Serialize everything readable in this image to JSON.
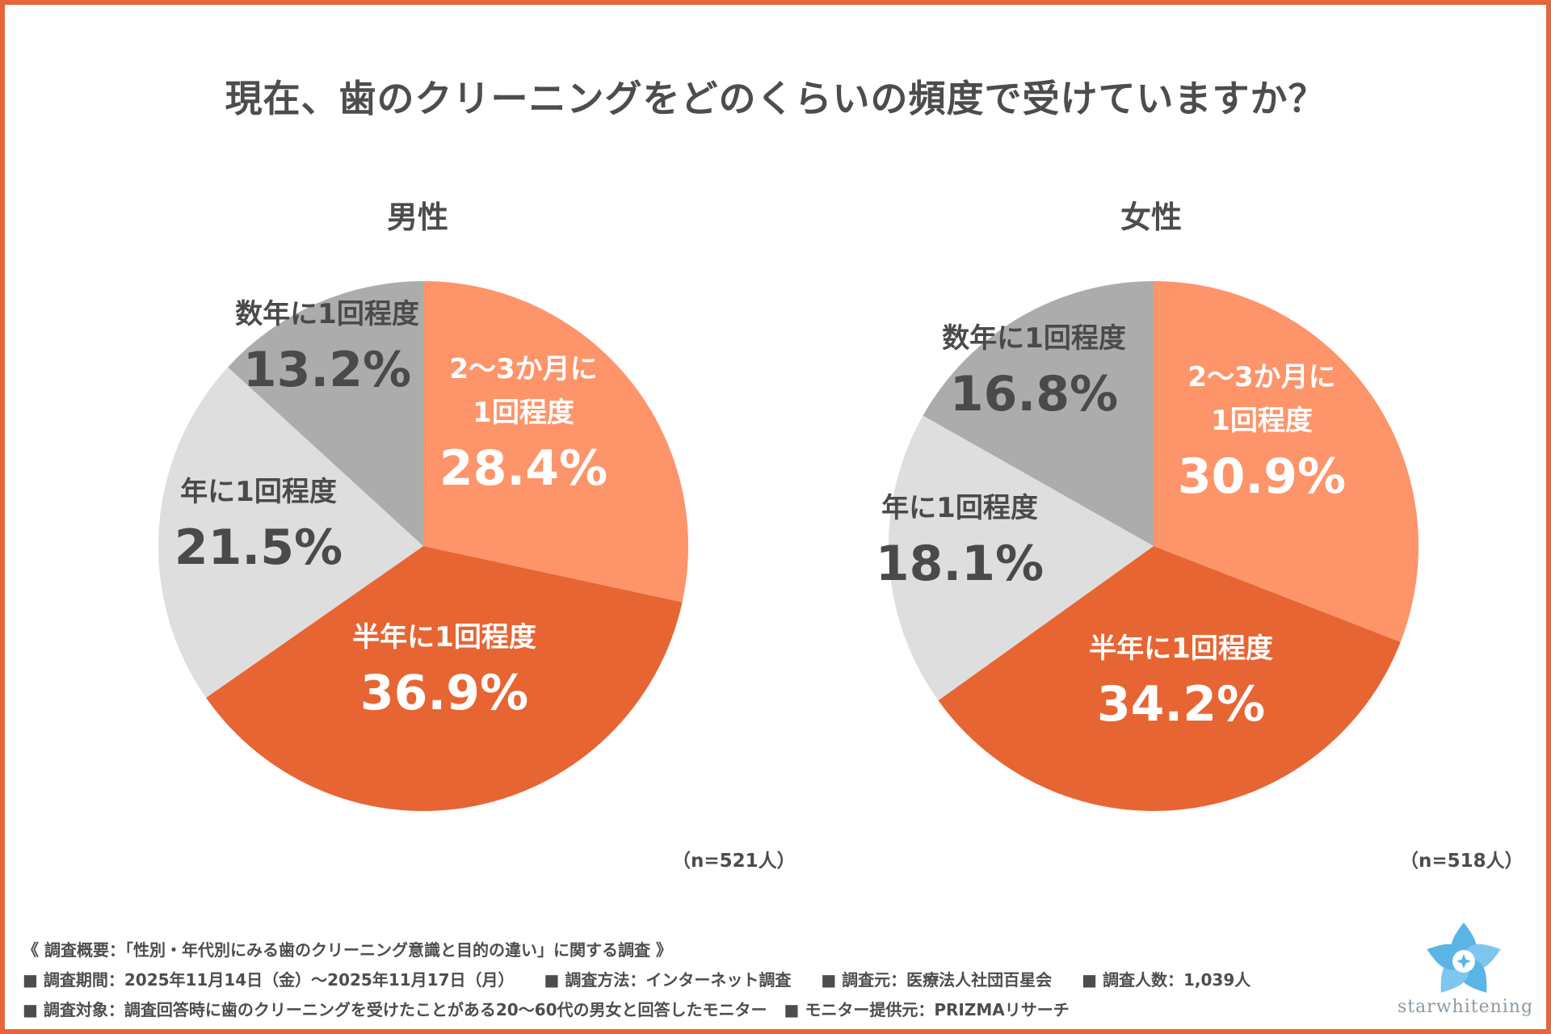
{
  "title": "現在、歯のクリーニングをどのくらいの頻度で受けていますか？",
  "colors": {
    "border": "#e8643a",
    "slice_1": "#fe946a",
    "slice_2": "#e76533",
    "slice_3": "#dedede",
    "slice_4": "#acacac",
    "text_light": "#ffffff",
    "text_dark": "#4a4a4a"
  },
  "chart_data": [
    {
      "type": "pie",
      "title": "男性",
      "n_label": "（n=521人）",
      "slices": [
        {
          "label": "2〜3か月に1回程度",
          "label_lines": [
            "2〜3か月に",
            "1回程度"
          ],
          "value": 28.4,
          "value_label": "28.4%"
        },
        {
          "label": "半年に1回程度",
          "label_lines": [
            "半年に1回程度"
          ],
          "value": 36.9,
          "value_label": "36.9%"
        },
        {
          "label": "年に1回程度",
          "label_lines": [
            "年に1回程度"
          ],
          "value": 21.5,
          "value_label": "21.5%"
        },
        {
          "label": "数年に1回程度",
          "label_lines": [
            "数年に1回程度"
          ],
          "value": 13.2,
          "value_label": "13.2%"
        }
      ]
    },
    {
      "type": "pie",
      "title": "女性",
      "n_label": "（n=518人）",
      "slices": [
        {
          "label": "2〜3か月に1回程度",
          "label_lines": [
            "2〜3か月に",
            "1回程度"
          ],
          "value": 30.9,
          "value_label": "30.9%"
        },
        {
          "label": "半年に1回程度",
          "label_lines": [
            "半年に1回程度"
          ],
          "value": 34.2,
          "value_label": "34.2%"
        },
        {
          "label": "年に1回程度",
          "label_lines": [
            "年に1回程度"
          ],
          "value": 18.1,
          "value_label": "18.1%"
        },
        {
          "label": "数年に1回程度",
          "label_lines": [
            "数年に1回程度"
          ],
          "value": 16.8,
          "value_label": "16.8%"
        }
      ]
    }
  ],
  "footer": {
    "line1": "《 調査概要：「性別・年代別にみる歯のクリーニング意識と目的の違い」に関する調査 》",
    "line2": [
      "■ 調査期間：2025年11月14日（金）〜2025年11月17日（月）",
      "■ 調査方法：インターネット調査",
      "■ 調査元：医療法人社団百星会",
      "■ 調査人数：1,039人"
    ],
    "line3": [
      "■ 調査対象：調査回答時に歯のクリーニングを受けたことがある20〜60代の男女と回答したモニター",
      "■ モニター提供元：PRIZMAリサーチ"
    ]
  },
  "logo": {
    "icon": "star-flower-icon",
    "text": "starwhitening"
  }
}
